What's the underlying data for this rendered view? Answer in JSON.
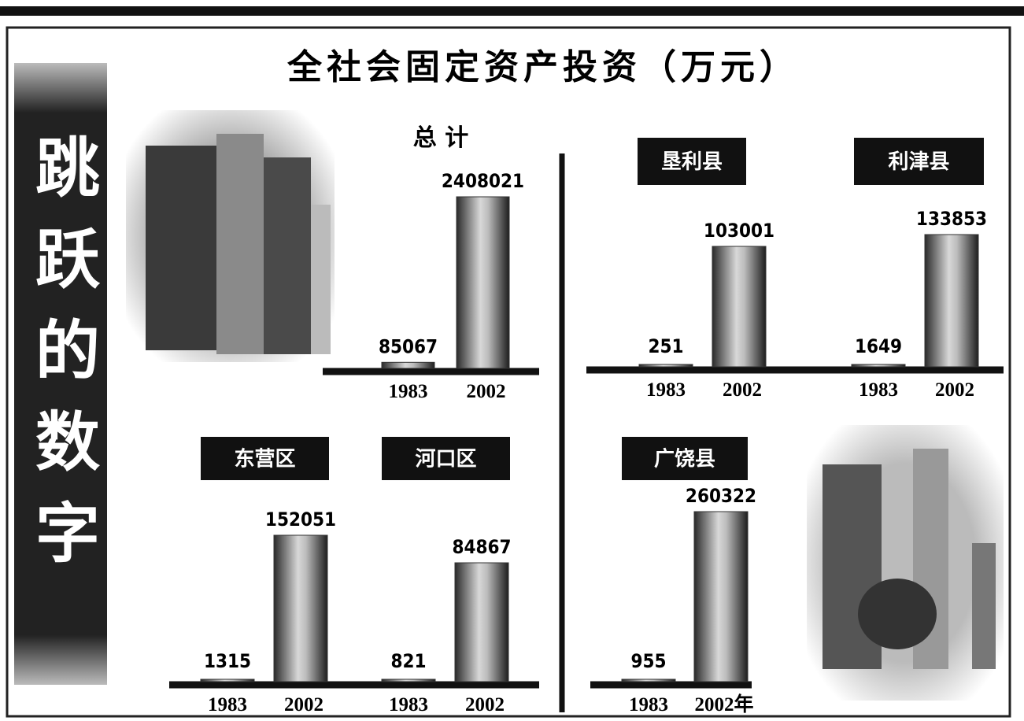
{
  "title": "全社会固定资产投资（万元）",
  "side_title": "跳跃的数字",
  "chart_data": [
    {
      "type": "bar",
      "title": "总 计",
      "categories": [
        "1983",
        "2002"
      ],
      "values": [
        85067,
        2408021
      ]
    },
    {
      "type": "bar",
      "title": "垦利县",
      "categories": [
        "1983",
        "2002"
      ],
      "values": [
        251,
        103001
      ]
    },
    {
      "type": "bar",
      "title": "利津县",
      "categories": [
        "1983",
        "2002"
      ],
      "values": [
        1649,
        133853
      ]
    },
    {
      "type": "bar",
      "title": "东营区",
      "categories": [
        "1983",
        "2002"
      ],
      "values": [
        1315,
        152051
      ]
    },
    {
      "type": "bar",
      "title": "河口区",
      "categories": [
        "1983",
        "2002"
      ],
      "values": [
        821,
        84867
      ]
    },
    {
      "type": "bar",
      "title": "广饶县",
      "categories": [
        "1983",
        "2002年"
      ],
      "values": [
        955,
        260322
      ]
    }
  ]
}
